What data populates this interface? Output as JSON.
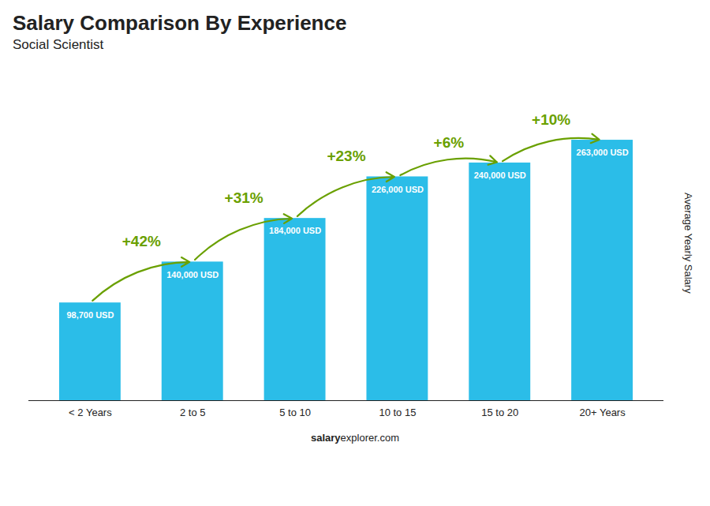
{
  "chart_data": {
    "type": "bar",
    "title": "Salary Comparison By Experience",
    "subtitle": "Social Scientist",
    "ylabel": "Average Yearly Salary",
    "caption": [
      "salary",
      "explorer.com"
    ],
    "categories": [
      "< 2 Years",
      "2 to 5",
      "5 to 10",
      "10 to 15",
      "15 to 20",
      "20+ Years"
    ],
    "values": [
      98700,
      140000,
      184000,
      226000,
      240000,
      263000
    ],
    "value_labels": [
      "98,700 USD",
      "140,000 USD",
      "184,000 USD",
      "226,000 USD",
      "240,000 USD",
      "263,000 USD"
    ],
    "data_labels": true,
    "annotations": [
      "+42%",
      "+31%",
      "+23%",
      "+6%",
      "+10%"
    ],
    "color": "#2bbde8",
    "ylim": [
      0,
      330000
    ],
    "grid": false,
    "tick_labels": "x"
  }
}
